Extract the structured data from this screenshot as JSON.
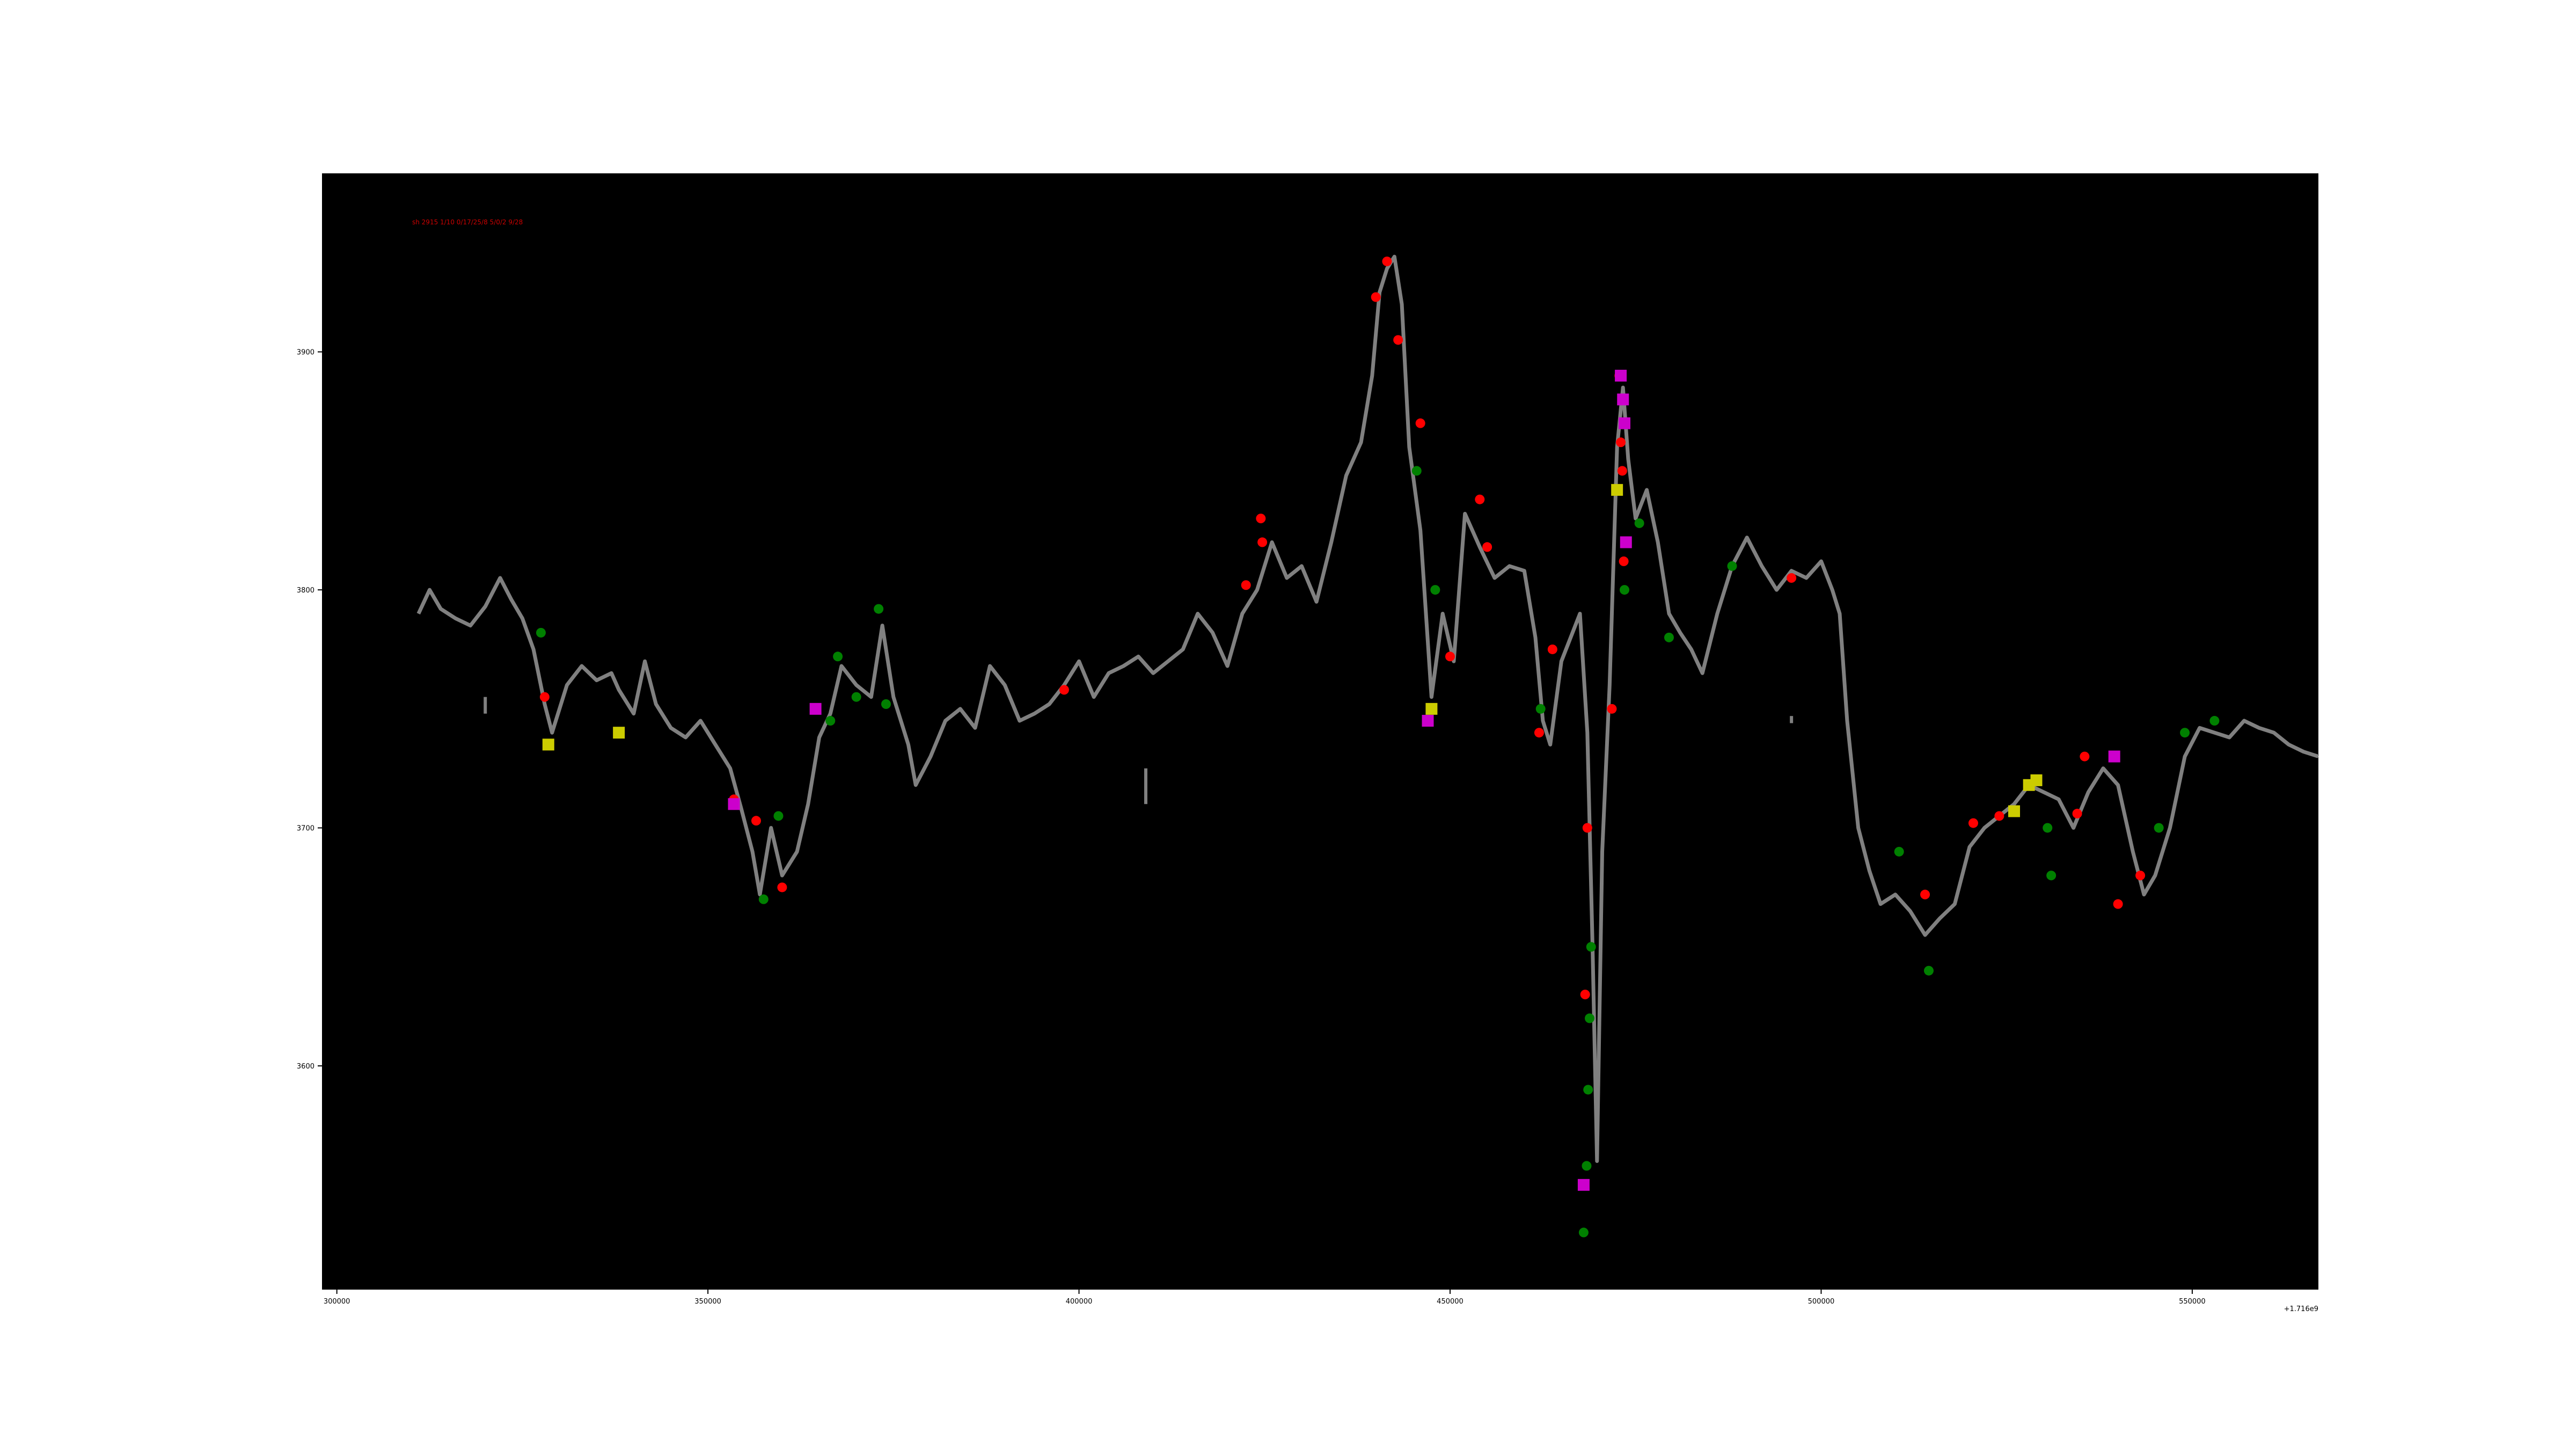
{
  "chart_data": {
    "type": "line",
    "title": "",
    "xlabel": "",
    "ylabel": "",
    "x_offset_label": "+1.716e9",
    "annotation": "sh 2915 1/10 0/17/25/8 5/0/2 9/28",
    "xlim": [
      298000,
      567000
    ],
    "ylim": [
      3506,
      3975
    ],
    "x_ticks": [
      300000,
      350000,
      400000,
      450000,
      500000,
      550000
    ],
    "y_ticks": [
      3600,
      3700,
      3800,
      3900
    ],
    "grid": false,
    "legend": "none",
    "colors": {
      "background": "#000000",
      "line": "#808080",
      "buy": "#008000",
      "sell": "#ff0000",
      "square_yellow": "#cccc00",
      "square_magenta": "#cc00cc",
      "axes_text": "#000000",
      "annotation": "#cc0000"
    },
    "series": [
      {
        "x": [
          311000,
          312500,
          314000,
          316000,
          318000,
          320000,
          322000,
          323500,
          325000,
          326500,
          328000,
          329000,
          331000,
          333000,
          335000,
          337000,
          338000,
          340000,
          341500,
          343000,
          345000,
          347000,
          349000,
          351000,
          353000,
          354500,
          356000,
          357000,
          358500,
          360000,
          362000,
          363500,
          365000,
          366500,
          368000,
          370000,
          372000,
          373500,
          375000,
          377000,
          378000,
          380000,
          382000,
          384000,
          386000,
          388000,
          390000,
          392000,
          394000,
          396000,
          398000,
          400000,
          402000,
          404000,
          406000,
          408000,
          410000,
          412000,
          414000,
          416000,
          418000,
          420000,
          422000,
          424000,
          426000,
          428000,
          430000,
          432000,
          434000,
          436000,
          438000,
          439500,
          440500,
          441500,
          442500,
          443500,
          444500,
          446000,
          447500,
          449000,
          450500,
          452000,
          454000,
          456000,
          458000,
          460000,
          461500,
          462500,
          463500,
          465000,
          466500,
          467500,
          468500,
          469200,
          469800,
          470500,
          471500,
          472500,
          473300,
          474000,
          475000,
          476500,
          478000,
          479500,
          481000,
          482500,
          484000,
          486000,
          488000,
          490000,
          492000,
          494000,
          496000,
          498000,
          500000,
          501500,
          502500,
          503500,
          505000,
          506500,
          508000,
          510000,
          512000,
          514000,
          516000,
          518000,
          520000,
          522000,
          524000,
          526000,
          528000,
          530000,
          532000,
          534000,
          536000,
          538000,
          540000,
          542000,
          543500,
          545000,
          547000,
          549000,
          551000,
          553000,
          555000,
          557000,
          559000,
          561000,
          563000,
          565000,
          567000
        ],
        "y": [
          3790,
          3800,
          3792,
          3788,
          3785,
          3793,
          3805,
          3796,
          3788,
          3775,
          3752,
          3740,
          3760,
          3768,
          3762,
          3765,
          3758,
          3748,
          3770,
          3752,
          3742,
          3738,
          3745,
          3735,
          3725,
          3708,
          3690,
          3672,
          3700,
          3680,
          3690,
          3710,
          3738,
          3748,
          3768,
          3760,
          3755,
          3785,
          3755,
          3735,
          3718,
          3730,
          3745,
          3750,
          3742,
          3768,
          3760,
          3745,
          3748,
          3752,
          3760,
          3770,
          3755,
          3765,
          3768,
          3772,
          3765,
          3770,
          3775,
          3790,
          3782,
          3768,
          3790,
          3800,
          3820,
          3805,
          3810,
          3795,
          3820,
          3848,
          3862,
          3890,
          3925,
          3935,
          3940,
          3920,
          3860,
          3825,
          3755,
          3790,
          3770,
          3832,
          3818,
          3805,
          3810,
          3808,
          3780,
          3745,
          3735,
          3770,
          3782,
          3790,
          3740,
          3650,
          3560,
          3690,
          3760,
          3860,
          3885,
          3855,
          3830,
          3842,
          3820,
          3790,
          3782,
          3775,
          3765,
          3790,
          3810,
          3822,
          3810,
          3800,
          3808,
          3805,
          3812,
          3800,
          3790,
          3745,
          3700,
          3682,
          3668,
          3672,
          3665,
          3655,
          3662,
          3668,
          3692,
          3700,
          3705,
          3710,
          3718,
          3715,
          3712,
          3700,
          3715,
          3725,
          3718,
          3690,
          3672,
          3680,
          3700,
          3730,
          3742,
          3740,
          3738,
          3745,
          3742,
          3740,
          3735,
          3732,
          3730
        ]
      }
    ],
    "markers": {
      "sell": [
        [
          328000,
          3755
        ],
        [
          353500,
          3712
        ],
        [
          356500,
          3703
        ],
        [
          360000,
          3675
        ],
        [
          398000,
          3758
        ],
        [
          422500,
          3802
        ],
        [
          424500,
          3830
        ],
        [
          424700,
          3820
        ],
        [
          440000,
          3923
        ],
        [
          441500,
          3938
        ],
        [
          443000,
          3905
        ],
        [
          446000,
          3870
        ],
        [
          450000,
          3772
        ],
        [
          454000,
          3838
        ],
        [
          455000,
          3818
        ],
        [
          462000,
          3740
        ],
        [
          463800,
          3775
        ],
        [
          468200,
          3630
        ],
        [
          468500,
          3700
        ],
        [
          471800,
          3750
        ],
        [
          472800,
          3890
        ],
        [
          473000,
          3862
        ],
        [
          473200,
          3850
        ],
        [
          473400,
          3812
        ],
        [
          496000,
          3805
        ],
        [
          514000,
          3672
        ],
        [
          520500,
          3702
        ],
        [
          524000,
          3705
        ],
        [
          534500,
          3706
        ],
        [
          535500,
          3730
        ],
        [
          540000,
          3668
        ],
        [
          543000,
          3680
        ]
      ],
      "buy": [
        [
          327500,
          3782
        ],
        [
          357500,
          3670
        ],
        [
          359500,
          3705
        ],
        [
          366500,
          3745
        ],
        [
          367500,
          3772
        ],
        [
          370000,
          3755
        ],
        [
          373000,
          3792
        ],
        [
          374000,
          3752
        ],
        [
          445500,
          3850
        ],
        [
          448000,
          3800
        ],
        [
          462200,
          3750
        ],
        [
          468000,
          3530
        ],
        [
          468400,
          3558
        ],
        [
          468600,
          3590
        ],
        [
          468800,
          3620
        ],
        [
          469000,
          3650
        ],
        [
          473500,
          3800
        ],
        [
          475500,
          3828
        ],
        [
          479500,
          3780
        ],
        [
          488000,
          3810
        ],
        [
          510500,
          3690
        ],
        [
          514500,
          3640
        ],
        [
          530500,
          3700
        ],
        [
          531000,
          3680
        ],
        [
          545500,
          3700
        ],
        [
          549000,
          3740
        ],
        [
          553000,
          3745
        ]
      ],
      "square_yellow": [
        [
          328500,
          3735
        ],
        [
          338000,
          3740
        ],
        [
          447500,
          3750
        ],
        [
          472500,
          3842
        ],
        [
          526000,
          3707
        ],
        [
          528000,
          3718
        ],
        [
          529000,
          3720
        ]
      ],
      "square_magenta": [
        [
          353500,
          3710
        ],
        [
          364500,
          3750
        ],
        [
          447000,
          3745
        ],
        [
          468000,
          3550
        ],
        [
          473000,
          3890
        ],
        [
          473300,
          3880
        ],
        [
          473500,
          3870
        ],
        [
          473700,
          3820
        ],
        [
          539500,
          3730
        ]
      ]
    },
    "stray_segments": [
      [
        320000,
        3748,
        320000,
        3755
      ],
      [
        409000,
        3710,
        409000,
        3725
      ],
      [
        496000,
        3744,
        496000,
        3747
      ]
    ]
  }
}
